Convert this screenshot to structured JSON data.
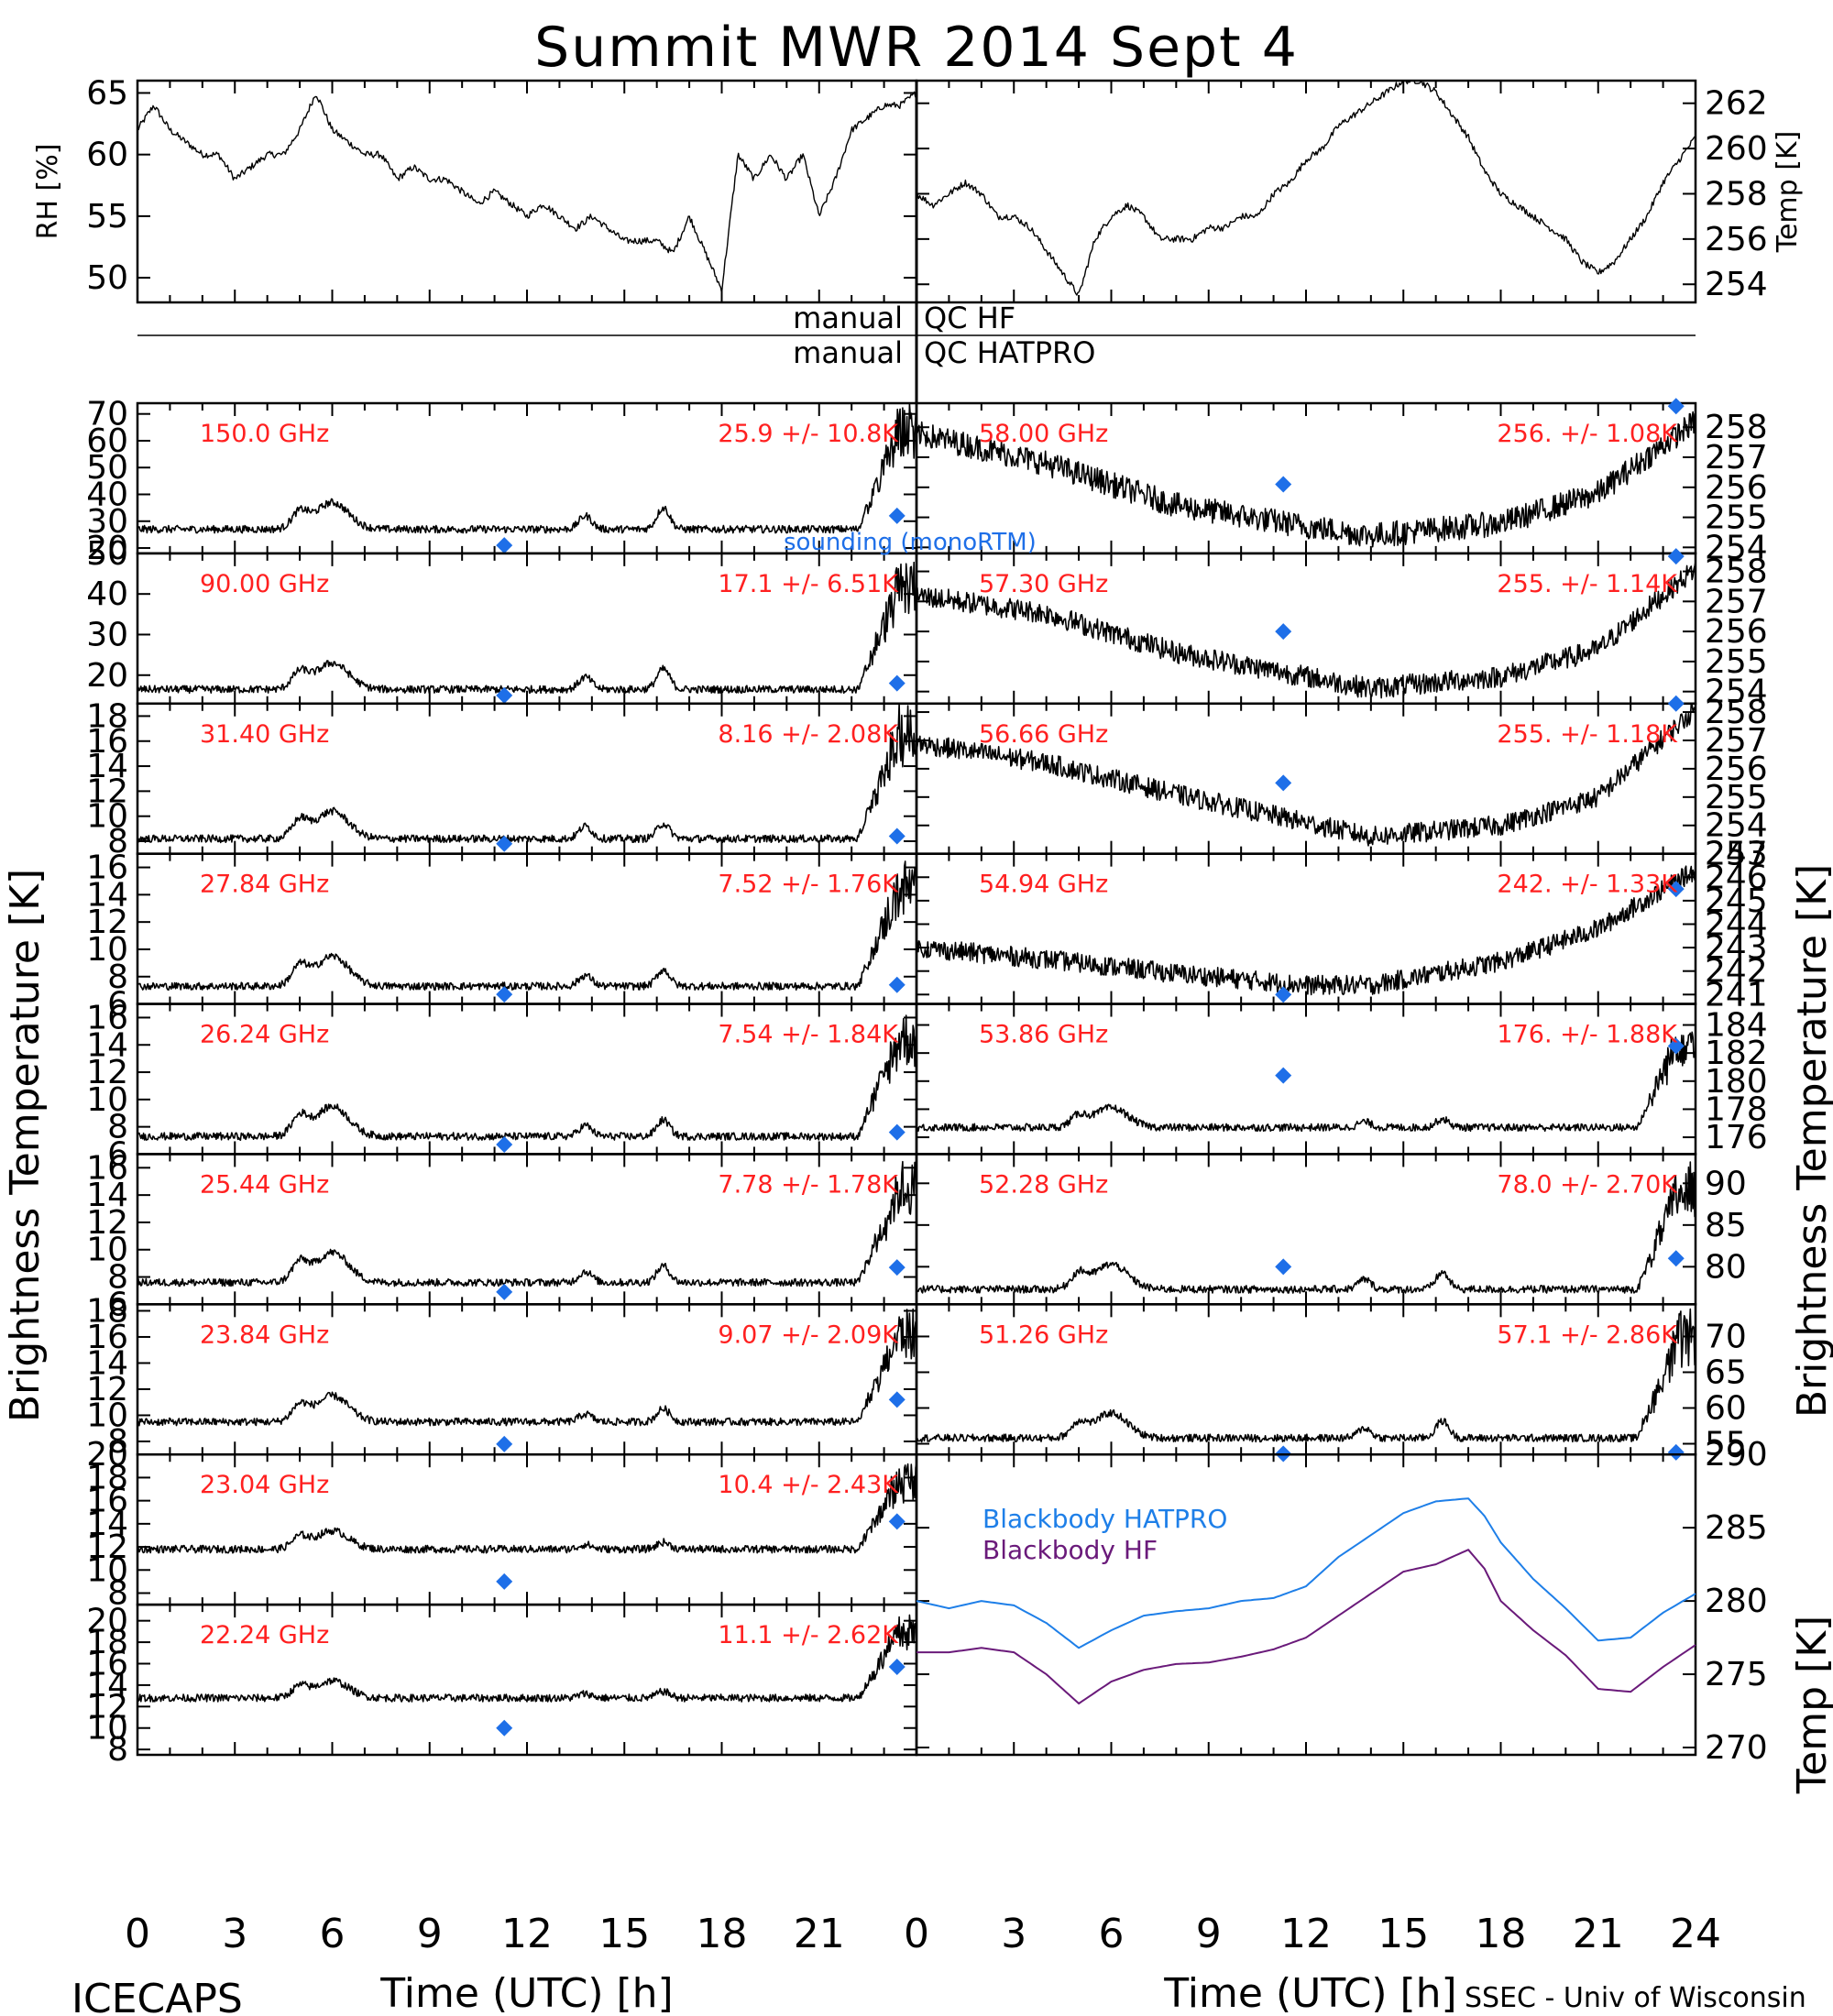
{
  "title": "Summit MWR 2014 Sept  4",
  "qc_labels": {
    "hf_left": "manual",
    "hf_right": "QC HF",
    "hatpro_left": "manual",
    "hatpro_right": "QC HATPRO"
  },
  "left_ylabel": "Brightness Temperature [K]",
  "right_ylabel": "Brightness Temperature [K]",
  "bb_ylabel": "Temp [K]",
  "xlabel": "Time (UTC) [h]",
  "footer_left": "ICECAPS",
  "footer_right": "SSEC - Univ of Wisconsin",
  "sounding_label": "sounding (monoRTM)",
  "colors": {
    "channel_text": "#ff2020",
    "sounding": "#1e6fe8",
    "bb_hatpro": "#1e7fe8",
    "bb_hf": "#6a1a7a",
    "trace": "#000000"
  },
  "chart_data": [
    {
      "type": "line",
      "panel": "rh",
      "ylabel": "RH [%]",
      "xlim": [
        0,
        24
      ],
      "ylim": [
        48,
        66
      ],
      "yticks": [
        50,
        55,
        60,
        65
      ],
      "x": [
        0,
        0.5,
        1,
        1.5,
        2,
        2.5,
        3,
        3.5,
        4,
        4.5,
        5,
        5.5,
        6,
        6.5,
        7,
        7.5,
        8,
        8.5,
        9,
        9.5,
        10,
        10.5,
        11,
        11.5,
        12,
        12.5,
        13,
        13.5,
        14,
        14.5,
        15,
        15.5,
        16,
        16.5,
        17,
        17.5,
        18,
        18.5,
        19,
        19.5,
        20,
        20.5,
        21,
        21.5,
        22,
        22.5,
        23,
        23.5,
        24
      ],
      "values": [
        62,
        64,
        62,
        61,
        60,
        60,
        58,
        59,
        60,
        60,
        62,
        65,
        62,
        61,
        60,
        60,
        58,
        59,
        58,
        58,
        57,
        56,
        57,
        56,
        55,
        56,
        55,
        54,
        55,
        54,
        53,
        53,
        53,
        52,
        55,
        52,
        49,
        60,
        58,
        60,
        58,
        60,
        55,
        58,
        62,
        63,
        64,
        64,
        65
      ]
    },
    {
      "type": "line",
      "panel": "temp",
      "ylabel": "Temp [K]",
      "xlim": [
        0,
        24
      ],
      "ylim": [
        253.2,
        263
      ],
      "yticks": [
        254,
        256,
        258,
        260,
        262
      ],
      "x": [
        0,
        0.5,
        1,
        1.5,
        2,
        2.5,
        3,
        3.5,
        4,
        4.5,
        5,
        5.5,
        6,
        6.5,
        7,
        7.5,
        8,
        8.5,
        9,
        9.5,
        10,
        10.5,
        11,
        11.5,
        12,
        12.5,
        13,
        13.5,
        14,
        14.5,
        15,
        15.5,
        16,
        16.5,
        17,
        17.5,
        18,
        18.5,
        19,
        19.5,
        20,
        20.5,
        21,
        21.5,
        22,
        22.5,
        23,
        23.5,
        24
      ],
      "values": [
        258,
        257.5,
        258,
        258.5,
        258,
        257,
        257,
        256.5,
        255.5,
        254.5,
        253.5,
        256,
        257,
        257.5,
        257,
        256,
        256,
        256,
        256.5,
        256.5,
        257,
        257,
        258,
        258.5,
        259.5,
        260,
        261,
        261.5,
        262,
        262.5,
        263,
        263,
        262.5,
        261.5,
        260.5,
        259,
        258,
        257.5,
        257,
        256.5,
        256,
        255,
        254.5,
        255,
        256,
        257,
        258.5,
        259.5,
        260.5
      ]
    },
    {
      "type": "line",
      "side": "left",
      "channel": "150.0 GHz",
      "stats": "25.9 +/-  10.8K",
      "ylim": [
        18,
        74
      ],
      "yticks": [
        20,
        30,
        40,
        50,
        60,
        70
      ],
      "baseline": 27,
      "bump6": 10,
      "bump5": 6,
      "extra": [
        [
          13.8,
          5
        ],
        [
          16.2,
          8
        ]
      ],
      "spike_end": 74,
      "sounding": [
        [
          11.3,
          21
        ],
        [
          23.4,
          32
        ]
      ]
    },
    {
      "type": "line",
      "side": "left",
      "channel": "90.00 GHz",
      "stats": "17.1 +/-  6.51K",
      "ylim": [
        13,
        50
      ],
      "yticks": [
        20,
        30,
        40,
        50
      ],
      "baseline": 16.5,
      "bump6": 6.5,
      "bump5": 4,
      "extra": [
        [
          13.8,
          3
        ],
        [
          16.2,
          5
        ]
      ],
      "spike_end": 49,
      "sounding": [
        [
          11.3,
          15
        ],
        [
          23.4,
          18
        ]
      ]
    },
    {
      "type": "line",
      "side": "left",
      "channel": "31.40 GHz",
      "stats": "8.16 +/- 2.08K",
      "ylim": [
        7,
        19
      ],
      "yticks": [
        8,
        10,
        12,
        14,
        16,
        18
      ],
      "baseline": 8.2,
      "bump6": 2.2,
      "bump5": 1.4,
      "extra": [
        [
          13.8,
          1.0
        ],
        [
          16.2,
          1.2
        ]
      ],
      "spike_end": 19,
      "sounding": [
        [
          11.3,
          7.8
        ],
        [
          23.4,
          8.4
        ]
      ]
    },
    {
      "type": "line",
      "side": "left",
      "channel": "27.84 GHz",
      "stats": "7.52 +/- 1.76K",
      "ylim": [
        6,
        17
      ],
      "yticks": [
        6,
        8,
        10,
        12,
        14,
        16
      ],
      "baseline": 7.3,
      "bump6": 2.2,
      "bump5": 1.4,
      "extra": [
        [
          13.8,
          0.8
        ],
        [
          16.2,
          1.2
        ]
      ],
      "spike_end": 16.5,
      "sounding": [
        [
          11.3,
          6.7
        ],
        [
          23.4,
          7.4
        ]
      ]
    },
    {
      "type": "line",
      "side": "left",
      "channel": "26.24 GHz",
      "stats": "7.54 +/- 1.84K",
      "ylim": [
        6,
        17
      ],
      "yticks": [
        6,
        8,
        10,
        12,
        14,
        16
      ],
      "baseline": 7.3,
      "bump6": 2.2,
      "bump5": 1.4,
      "extra": [
        [
          13.8,
          0.8
        ],
        [
          16.2,
          1.2
        ]
      ],
      "spike_end": 16.5,
      "sounding": [
        [
          11.3,
          6.7
        ],
        [
          23.4,
          7.6
        ]
      ]
    },
    {
      "type": "line",
      "side": "left",
      "channel": "25.44 GHz",
      "stats": "7.78 +/- 1.78K",
      "ylim": [
        6,
        17
      ],
      "yticks": [
        6,
        8,
        10,
        12,
        14,
        16
      ],
      "baseline": 7.6,
      "bump6": 2.2,
      "bump5": 1.4,
      "extra": [
        [
          13.8,
          0.8
        ],
        [
          16.2,
          1.2
        ]
      ],
      "spike_end": 16.5,
      "sounding": [
        [
          11.3,
          6.9
        ],
        [
          23.4,
          8.7
        ]
      ]
    },
    {
      "type": "line",
      "side": "left",
      "channel": "23.84 GHz",
      "stats": "9.07 +/- 2.09K",
      "ylim": [
        7,
        18.5
      ],
      "yticks": [
        8,
        10,
        12,
        14,
        16,
        18
      ],
      "baseline": 9.5,
      "bump6": 2.0,
      "bump5": 1.2,
      "extra": [
        [
          13.8,
          0.6
        ],
        [
          16.2,
          1.0
        ]
      ],
      "spike_end": 18.2,
      "sounding": [
        [
          11.3,
          7.8
        ],
        [
          23.4,
          11.2
        ]
      ]
    },
    {
      "type": "line",
      "side": "left",
      "channel": "23.04 GHz",
      "stats": "10.4 +/- 2.43K",
      "ylim": [
        7,
        20
      ],
      "yticks": [
        8,
        10,
        12,
        14,
        16,
        18,
        20
      ],
      "baseline": 11.8,
      "bump6": 1.6,
      "bump5": 1.0,
      "extra": [
        [
          13.8,
          0.4
        ],
        [
          16.2,
          0.6
        ]
      ],
      "spike_end": 19.5,
      "sounding": [
        [
          11.3,
          9.0
        ],
        [
          23.4,
          14.2
        ]
      ]
    },
    {
      "type": "line",
      "side": "left",
      "channel": "22.24 GHz",
      "stats": "11.1 +/- 2.62K",
      "ylim": [
        7.5,
        21.5
      ],
      "yticks": [
        8,
        10,
        12,
        14,
        16,
        18,
        20
      ],
      "baseline": 12.8,
      "bump6": 1.6,
      "bump5": 1.0,
      "extra": [
        [
          13.8,
          0.4
        ],
        [
          16.2,
          0.6
        ]
      ],
      "spike_end": 20.8,
      "sounding": [
        [
          11.3,
          10.0
        ],
        [
          23.4,
          15.7
        ]
      ]
    },
    {
      "type": "line",
      "side": "right",
      "channel": "58.00 GHz",
      "stats": "256. +/- 1.08K",
      "ylim": [
        253.8,
        258.8
      ],
      "yticks": [
        254,
        255,
        256,
        257,
        258
      ],
      "shape": [
        [
          0,
          257.8
        ],
        [
          4,
          256.8
        ],
        [
          8,
          255.4
        ],
        [
          12,
          254.7
        ],
        [
          14,
          254.4
        ],
        [
          18,
          254.8
        ],
        [
          21,
          255.8
        ],
        [
          24,
          258.2
        ]
      ],
      "noise": 0.35,
      "sounding": [
        [
          11.3,
          256.1
        ],
        [
          23.4,
          258.7
        ]
      ]
    },
    {
      "type": "line",
      "side": "right",
      "channel": "57.30 GHz",
      "stats": "255. +/- 1.14K",
      "ylim": [
        253.6,
        258.6
      ],
      "yticks": [
        254,
        255,
        256,
        257,
        258
      ],
      "shape": [
        [
          0,
          257.2
        ],
        [
          4,
          256.6
        ],
        [
          8,
          255.3
        ],
        [
          12,
          254.5
        ],
        [
          14,
          254.1
        ],
        [
          18,
          254.5
        ],
        [
          21,
          255.4
        ],
        [
          24,
          258.1
        ]
      ],
      "noise": 0.3,
      "sounding": [
        [
          11.3,
          256.0
        ],
        [
          23.4,
          258.5
        ]
      ]
    },
    {
      "type": "line",
      "side": "right",
      "channel": "56.66 GHz",
      "stats": "255. +/- 1.18K",
      "ylim": [
        253,
        258.3
      ],
      "yticks": [
        253,
        254,
        255,
        256,
        257,
        258
      ],
      "shape": [
        [
          0,
          256.9
        ],
        [
          4,
          256.2
        ],
        [
          8,
          255.1
        ],
        [
          12,
          254.1
        ],
        [
          14,
          253.6
        ],
        [
          18,
          254.0
        ],
        [
          21,
          255.0
        ],
        [
          24,
          258.1
        ]
      ],
      "noise": 0.3,
      "sounding": [
        [
          11.3,
          255.5
        ],
        [
          23.4,
          258.4
        ]
      ]
    },
    {
      "type": "line",
      "side": "right",
      "channel": "54.94 GHz",
      "stats": "242. +/- 1.33K",
      "ylim": [
        240.6,
        247
      ],
      "yticks": [
        241,
        242,
        243,
        244,
        245,
        246,
        247
      ],
      "shape": [
        [
          0,
          243.0
        ],
        [
          4,
          242.5
        ],
        [
          8,
          241.9
        ],
        [
          12,
          241.4
        ],
        [
          14,
          241.4
        ],
        [
          18,
          242.4
        ],
        [
          21,
          243.8
        ],
        [
          24,
          246.3
        ]
      ],
      "noise": 0.35,
      "sounding": [
        [
          11.3,
          241.0
        ],
        [
          23.4,
          245.5
        ]
      ]
    },
    {
      "type": "line",
      "side": "right",
      "channel": "53.86 GHz",
      "stats": "176. +/- 1.88K",
      "ylim": [
        174.8,
        185.5
      ],
      "yticks": [
        176,
        178,
        180,
        182,
        184
      ],
      "baseline": 176.7,
      "bump6": 1.4,
      "bump5": 0.8,
      "extra": [
        [
          13.8,
          0.4
        ],
        [
          16.2,
          0.6
        ]
      ],
      "spike_end": 184.8,
      "sounding": [
        [
          11.3,
          180.4
        ],
        [
          23.4,
          182.5
        ]
      ]
    },
    {
      "type": "line",
      "side": "right",
      "channel": "52.28 GHz",
      "stats": "78.0 +/- 2.70K",
      "ylim": [
        75.5,
        93.5
      ],
      "yticks": [
        80,
        85,
        90
      ],
      "baseline": 77.3,
      "bump6": 3.0,
      "bump5": 1.8,
      "extra": [
        [
          13.8,
          1.2
        ],
        [
          16.2,
          2.0
        ]
      ],
      "spike_end": 92.5,
      "sounding": [
        [
          11.3,
          80.0
        ],
        [
          23.4,
          81.0
        ]
      ]
    },
    {
      "type": "line",
      "side": "right",
      "channel": "51.26 GHz",
      "stats": "57.1 +/- 2.86K",
      "ylim": [
        53.5,
        74.5
      ],
      "yticks": [
        55,
        60,
        65,
        70
      ],
      "baseline": 55.8,
      "bump6": 3.5,
      "bump5": 2.0,
      "extra": [
        [
          13.8,
          1.4
        ],
        [
          16.2,
          2.4
        ]
      ],
      "spike_end": 73.5,
      "sounding": [
        [
          11.3,
          53.6
        ],
        [
          23.4,
          53.8
        ]
      ]
    },
    {
      "type": "line",
      "panel": "blackbody",
      "ylabel": "Temp [K]",
      "xlim": [
        0,
        24
      ],
      "ylim": [
        269.5,
        290
      ],
      "yticks": [
        270,
        275,
        280,
        285,
        290
      ],
      "series": [
        {
          "name": "Blackbody HATPRO",
          "color": "#1e7fe8",
          "x": [
            0,
            1,
            2,
            3,
            4,
            5,
            6,
            7,
            8,
            9,
            10,
            11,
            12,
            13,
            14,
            15,
            16,
            17,
            17.5,
            18,
            19,
            20,
            21,
            22,
            23,
            24
          ],
          "values": [
            280,
            279.5,
            280,
            279.7,
            278.5,
            276.8,
            278,
            279,
            279.3,
            279.5,
            280,
            280.2,
            281,
            283,
            284.5,
            286,
            286.8,
            287,
            285.8,
            284,
            281.5,
            279.5,
            277.3,
            277.5,
            279.2,
            280.5
          ]
        },
        {
          "name": "Blackbody HF",
          "color": "#6a1a7a",
          "x": [
            0,
            1,
            2,
            3,
            4,
            5,
            6,
            7,
            8,
            9,
            10,
            11,
            12,
            13,
            14,
            15,
            16,
            17,
            17.5,
            18,
            19,
            20,
            21,
            22,
            23,
            24
          ],
          "values": [
            276.5,
            276.5,
            276.8,
            276.5,
            275,
            273,
            274.5,
            275.3,
            275.7,
            275.8,
            276.2,
            276.7,
            277.5,
            279,
            280.5,
            282,
            282.5,
            283.5,
            282.2,
            280,
            278,
            276.3,
            274,
            273.8,
            275.5,
            277
          ]
        }
      ]
    }
  ],
  "x_ticks": [
    "0",
    "3",
    "6",
    "9",
    "12",
    "15",
    "18",
    "21",
    "24"
  ]
}
